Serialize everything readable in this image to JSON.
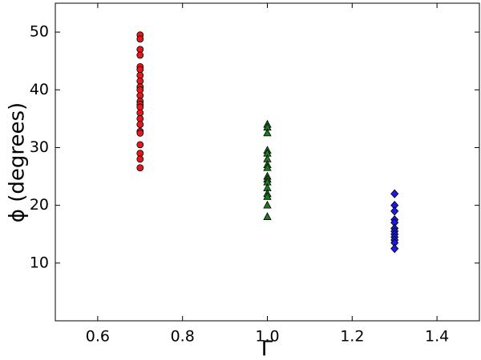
{
  "chart_data": {
    "type": "scatter",
    "xlabel": "Γ",
    "ylabel": "ϕ (degrees)",
    "xlim": [
      0.5,
      1.5
    ],
    "ylim": [
      0,
      55
    ],
    "xticks": [
      0.6,
      0.8,
      {
        "value": 1,
        "label": "1.0"
      },
      1.2,
      1.4
    ],
    "yticks": [
      10,
      20,
      30,
      40,
      50
    ],
    "grid": false,
    "series": [
      {
        "color": "#e8151a",
        "marker": "circle",
        "x": [
          0.7,
          0.7,
          0.7,
          0.7,
          0.7,
          0.7,
          0.7,
          0.7,
          0.7,
          0.7,
          0.7,
          0.7,
          0.7,
          0.7,
          0.7,
          0.7,
          0.7,
          0.7,
          0.7,
          0.7,
          0.7,
          0.7,
          0.7
        ],
        "values": [
          49.5,
          48.8,
          47,
          46,
          44,
          43.5,
          42.5,
          41.5,
          40.5,
          40,
          39,
          38,
          37.5,
          37,
          36,
          35,
          34,
          32.8,
          32.5,
          30.5,
          29,
          28,
          26.5
        ]
      },
      {
        "color": "#1e7a1e",
        "marker": "triangle",
        "x": [
          1,
          1,
          1,
          1,
          1,
          1,
          1,
          1,
          1,
          1,
          1,
          1,
          1,
          1,
          1,
          1
        ],
        "values": [
          34,
          33.5,
          32.5,
          29.5,
          29,
          28,
          27,
          26.5,
          25,
          24.5,
          24,
          23,
          22,
          21.5,
          20,
          18
        ]
      },
      {
        "color": "#1a1ae8",
        "marker": "diamond",
        "x": [
          1.3,
          1.3,
          1.3,
          1.3,
          1.3,
          1.3,
          1.3,
          1.3,
          1.3,
          1.3,
          1.3,
          1.3
        ],
        "values": [
          22,
          20,
          19,
          17.5,
          17,
          16,
          15.5,
          15,
          14.5,
          14,
          13.5,
          12.5
        ]
      }
    ]
  }
}
